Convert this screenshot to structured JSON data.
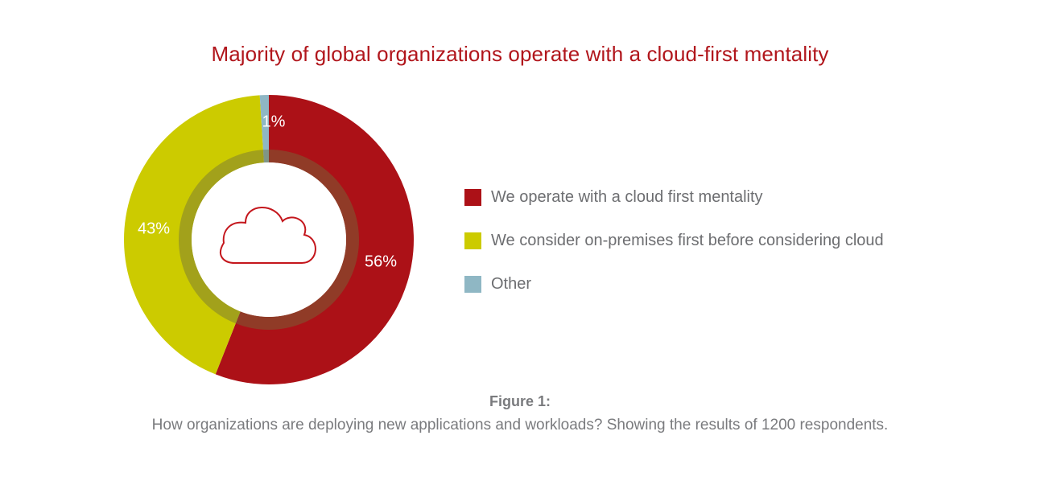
{
  "chart_data": {
    "type": "pie",
    "title": "Majority of global organizations operate with a cloud-first mentality",
    "slices": [
      {
        "name": "We operate with a cloud first mentality",
        "value": 56,
        "label": "56%",
        "color": "#ac1117"
      },
      {
        "name": "We consider on-premises first before considering cloud",
        "value": 43,
        "label": "43%",
        "color": "#cccb00"
      },
      {
        "name": "Other",
        "value": 1,
        "label": "1%",
        "color": "#8fb7c4"
      }
    ],
    "legend_placement": "right",
    "center_icon": "cloud-icon"
  },
  "caption": {
    "label": "Figure 1:",
    "text": "How organizations are deploying new applications and workloads? Showing the results of 1200 respondents."
  }
}
